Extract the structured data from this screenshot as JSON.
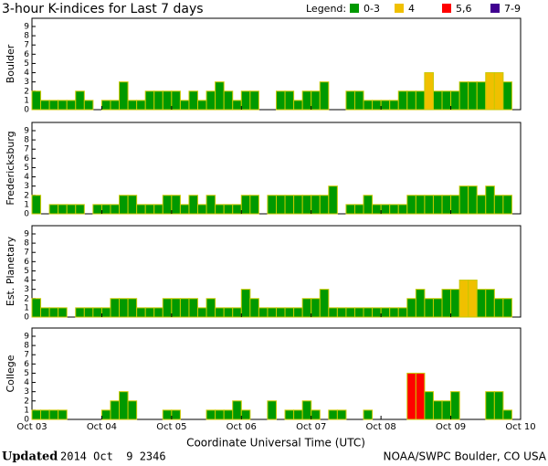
{
  "chart_data": {
    "type": "bar",
    "title": "3-hour K-indices for Last 7 days",
    "legend_title": "Legend:",
    "legend": [
      {
        "label": "0-3",
        "color": "#009900"
      },
      {
        "label": "4",
        "color": "#f0c000"
      },
      {
        "label": "5,6",
        "color": "#ff0000"
      },
      {
        "label": "7-9",
        "color": "#400090"
      }
    ],
    "x_label": "Coordinate Universal Time (UTC)",
    "xtick_labels": [
      "Oct 03",
      "Oct 04",
      "Oct 05",
      "Oct 06",
      "Oct 07",
      "Oct 08",
      "Oct 09",
      "Oct 10"
    ],
    "ylim": [
      0,
      9
    ],
    "yticks": [
      0,
      1,
      2,
      3,
      4,
      5,
      6,
      7,
      8,
      9
    ],
    "series": [
      {
        "name": "Boulder",
        "values": [
          2,
          1,
          1,
          1,
          1,
          2,
          1,
          0,
          1,
          1,
          3,
          1,
          1,
          2,
          2,
          2,
          2,
          1,
          2,
          1,
          2,
          3,
          2,
          1,
          2,
          2,
          0,
          0,
          2,
          2,
          1,
          2,
          2,
          3,
          0,
          0,
          2,
          2,
          1,
          1,
          1,
          1,
          2,
          2,
          2,
          4,
          2,
          2,
          2,
          3,
          3,
          3,
          4,
          4,
          3,
          0
        ],
        "colors": [
          "#009900",
          "#009900",
          "#009900",
          "#009900",
          "#009900",
          "#009900",
          "#009900",
          "#009900",
          "#009900",
          "#009900",
          "#009900",
          "#009900",
          "#009900",
          "#009900",
          "#009900",
          "#009900",
          "#009900",
          "#009900",
          "#009900",
          "#009900",
          "#009900",
          "#009900",
          "#009900",
          "#009900",
          "#009900",
          "#009900",
          "#009900",
          "#009900",
          "#009900",
          "#009900",
          "#009900",
          "#009900",
          "#009900",
          "#009900",
          "#009900",
          "#009900",
          "#009900",
          "#009900",
          "#009900",
          "#009900",
          "#009900",
          "#009900",
          "#009900",
          "#009900",
          "#009900",
          "#f0c000",
          "#009900",
          "#009900",
          "#009900",
          "#009900",
          "#009900",
          "#009900",
          "#f0c000",
          "#f0c000",
          "#009900",
          "#009900"
        ]
      },
      {
        "name": "Fredericksburg",
        "values": [
          2,
          0,
          1,
          1,
          1,
          1,
          0,
          1,
          1,
          1,
          2,
          2,
          1,
          1,
          1,
          2,
          2,
          1,
          2,
          1,
          2,
          1,
          1,
          1,
          2,
          2,
          0,
          2,
          2,
          2,
          2,
          2,
          2,
          2,
          3,
          0,
          1,
          1,
          2,
          1,
          1,
          1,
          1,
          2,
          2,
          2,
          2,
          2,
          2,
          3,
          3,
          2,
          3,
          2,
          2,
          0
        ],
        "colors": [
          "#009900",
          "#009900",
          "#009900",
          "#009900",
          "#009900",
          "#009900",
          "#009900",
          "#009900",
          "#009900",
          "#009900",
          "#009900",
          "#009900",
          "#009900",
          "#009900",
          "#009900",
          "#009900",
          "#009900",
          "#009900",
          "#009900",
          "#009900",
          "#009900",
          "#009900",
          "#009900",
          "#009900",
          "#009900",
          "#009900",
          "#009900",
          "#009900",
          "#009900",
          "#009900",
          "#009900",
          "#009900",
          "#009900",
          "#009900",
          "#009900",
          "#009900",
          "#009900",
          "#009900",
          "#009900",
          "#009900",
          "#009900",
          "#009900",
          "#009900",
          "#009900",
          "#009900",
          "#009900",
          "#009900",
          "#009900",
          "#009900",
          "#009900",
          "#009900",
          "#009900",
          "#009900",
          "#009900",
          "#009900",
          "#009900"
        ]
      },
      {
        "name": "Est. Planetary",
        "values": [
          2,
          1,
          1,
          1,
          0,
          1,
          1,
          1,
          1,
          2,
          2,
          2,
          1,
          1,
          1,
          2,
          2,
          2,
          2,
          1,
          2,
          1,
          1,
          1,
          3,
          2,
          1,
          1,
          1,
          1,
          1,
          2,
          2,
          3,
          1,
          1,
          1,
          1,
          1,
          1,
          1,
          1,
          1,
          2,
          3,
          2,
          2,
          3,
          3,
          4,
          4,
          3,
          3,
          2,
          2,
          0
        ],
        "colors": [
          "#009900",
          "#009900",
          "#009900",
          "#009900",
          "#009900",
          "#009900",
          "#009900",
          "#009900",
          "#009900",
          "#009900",
          "#009900",
          "#009900",
          "#009900",
          "#009900",
          "#009900",
          "#009900",
          "#009900",
          "#009900",
          "#009900",
          "#009900",
          "#009900",
          "#009900",
          "#009900",
          "#009900",
          "#009900",
          "#009900",
          "#009900",
          "#009900",
          "#009900",
          "#009900",
          "#009900",
          "#009900",
          "#009900",
          "#009900",
          "#009900",
          "#009900",
          "#009900",
          "#009900",
          "#009900",
          "#009900",
          "#009900",
          "#009900",
          "#009900",
          "#009900",
          "#009900",
          "#009900",
          "#009900",
          "#009900",
          "#009900",
          "#f0c000",
          "#f0c000",
          "#009900",
          "#009900",
          "#009900",
          "#009900",
          "#009900"
        ]
      },
      {
        "name": "College",
        "values": [
          1,
          1,
          1,
          1,
          0,
          0,
          0,
          0,
          1,
          2,
          3,
          2,
          0,
          0,
          0,
          1,
          1,
          0,
          0,
          0,
          1,
          1,
          1,
          2,
          1,
          0,
          0,
          2,
          0,
          1,
          1,
          2,
          1,
          0,
          1,
          1,
          0,
          0,
          1,
          0,
          0,
          0,
          0,
          5,
          5,
          3,
          2,
          2,
          3,
          0,
          0,
          0,
          3,
          3,
          1,
          0
        ],
        "colors": [
          "#009900",
          "#009900",
          "#009900",
          "#009900",
          "#009900",
          "#009900",
          "#009900",
          "#009900",
          "#009900",
          "#009900",
          "#009900",
          "#009900",
          "#009900",
          "#009900",
          "#009900",
          "#009900",
          "#009900",
          "#009900",
          "#009900",
          "#009900",
          "#009900",
          "#009900",
          "#009900",
          "#009900",
          "#009900",
          "#009900",
          "#009900",
          "#009900",
          "#009900",
          "#009900",
          "#009900",
          "#009900",
          "#009900",
          "#009900",
          "#009900",
          "#009900",
          "#009900",
          "#009900",
          "#009900",
          "#009900",
          "#009900",
          "#009900",
          "#009900",
          "#ff0000",
          "#ff0000",
          "#009900",
          "#009900",
          "#009900",
          "#009900",
          "#009900",
          "#009900",
          "#009900",
          "#009900",
          "#009900",
          "#009900",
          "#009900"
        ]
      }
    ],
    "footer": {
      "updated_label": "Updated",
      "updated_time": "2014 Oct  9 2346",
      "source": "NOAA/SWPC Boulder, CO USA"
    }
  }
}
